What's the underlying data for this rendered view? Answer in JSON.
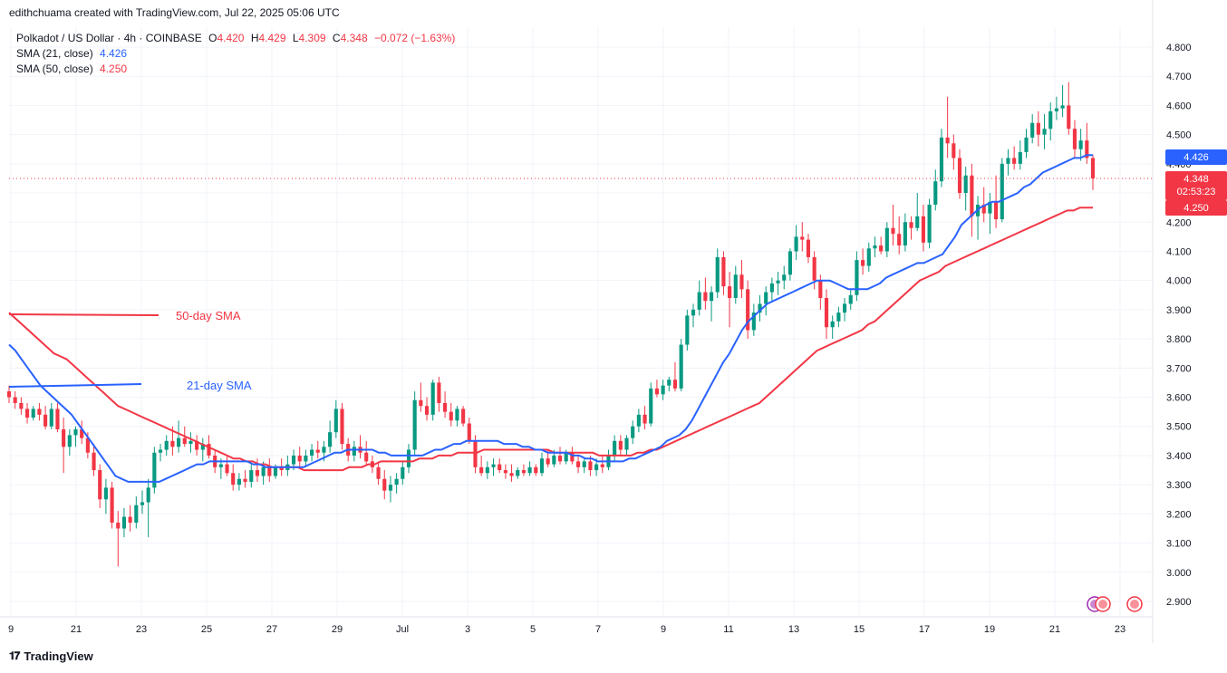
{
  "header": {
    "caption": "edithchuama created with TradingView.com, Jul 22, 2025 05:06 UTC"
  },
  "legend": {
    "symbol": "Polkadot / US Dollar · 4h · COINBASE",
    "open_label": "O",
    "open": "4.420",
    "high_label": "H",
    "high": "4.429",
    "low_label": "L",
    "low": "4.309",
    "close_label": "C",
    "close": "4.348",
    "change": "−0.072 (−1.63%)",
    "sma21_label": "SMA (21, close)",
    "sma21_value": "4.426",
    "sma50_label": "SMA (50, close)",
    "sma50_value": "4.250"
  },
  "annotations": {
    "sma50": "50-day SMA",
    "sma21": "21-day SMA"
  },
  "price_tags": {
    "sma21": "4.426",
    "last": "4.348",
    "countdown": "02:53:23",
    "sma50": "4.250"
  },
  "colors": {
    "up": "#089981",
    "down": "#f23645",
    "sma21": "#2962ff",
    "sma50": "#f23645",
    "grid": "#f0f3fa"
  },
  "brand": "TradingView",
  "chart_data": {
    "type": "candlestick",
    "title": "Polkadot / US Dollar · 4h · COINBASE",
    "ylim": [
      2.85,
      4.85
    ],
    "y_ticks": [
      "4.800",
      "4.700",
      "4.600",
      "4.500",
      "4.400",
      "4.300",
      "4.200",
      "4.100",
      "4.000",
      "3.900",
      "3.800",
      "3.700",
      "3.600",
      "3.500",
      "3.400",
      "3.300",
      "3.200",
      "3.100",
      "3.000",
      "2.900"
    ],
    "x_ticks": [
      "9",
      "21",
      "23",
      "25",
      "27",
      "29",
      "Jul",
      "3",
      "5",
      "7",
      "9",
      "11",
      "13",
      "15",
      "17",
      "19",
      "21",
      "23"
    ],
    "candles": [
      [
        3.62,
        3.64,
        3.58,
        3.6
      ],
      [
        3.6,
        3.62,
        3.56,
        3.58
      ],
      [
        3.58,
        3.6,
        3.54,
        3.56
      ],
      [
        3.56,
        3.58,
        3.51,
        3.53
      ],
      [
        3.53,
        3.57,
        3.52,
        3.56
      ],
      [
        3.56,
        3.58,
        3.52,
        3.54
      ],
      [
        3.54,
        3.57,
        3.49,
        3.5
      ],
      [
        3.5,
        3.58,
        3.49,
        3.56
      ],
      [
        3.56,
        3.58,
        3.48,
        3.49
      ],
      [
        3.49,
        3.53,
        3.34,
        3.43
      ],
      [
        3.43,
        3.49,
        3.4,
        3.47
      ],
      [
        3.47,
        3.5,
        3.43,
        3.49
      ],
      [
        3.49,
        3.52,
        3.44,
        3.46
      ],
      [
        3.46,
        3.48,
        3.39,
        3.41
      ],
      [
        3.41,
        3.44,
        3.33,
        3.35
      ],
      [
        3.35,
        3.37,
        3.22,
        3.25
      ],
      [
        3.25,
        3.32,
        3.2,
        3.29
      ],
      [
        3.29,
        3.31,
        3.15,
        3.17
      ],
      [
        3.17,
        3.21,
        3.02,
        3.15
      ],
      [
        3.15,
        3.22,
        3.12,
        3.19
      ],
      [
        3.19,
        3.23,
        3.14,
        3.17
      ],
      [
        3.17,
        3.26,
        3.15,
        3.23
      ],
      [
        3.23,
        3.28,
        3.2,
        3.24
      ],
      [
        3.24,
        3.32,
        3.12,
        3.29
      ],
      [
        3.29,
        3.43,
        3.27,
        3.41
      ],
      [
        3.41,
        3.44,
        3.38,
        3.42
      ],
      [
        3.42,
        3.47,
        3.4,
        3.45
      ],
      [
        3.45,
        3.5,
        3.4,
        3.43
      ],
      [
        3.43,
        3.52,
        3.41,
        3.46
      ],
      [
        3.46,
        3.5,
        3.43,
        3.44
      ],
      [
        3.44,
        3.48,
        3.41,
        3.45
      ],
      [
        3.45,
        3.47,
        3.4,
        3.42
      ],
      [
        3.42,
        3.46,
        3.38,
        3.44
      ],
      [
        3.44,
        3.47,
        3.39,
        3.4
      ],
      [
        3.4,
        3.42,
        3.34,
        3.36
      ],
      [
        3.36,
        3.39,
        3.32,
        3.37
      ],
      [
        3.37,
        3.4,
        3.33,
        3.34
      ],
      [
        3.34,
        3.37,
        3.28,
        3.3
      ],
      [
        3.3,
        3.34,
        3.28,
        3.32
      ],
      [
        3.32,
        3.35,
        3.29,
        3.31
      ],
      [
        3.31,
        3.37,
        3.29,
        3.35
      ],
      [
        3.35,
        3.39,
        3.31,
        3.33
      ],
      [
        3.33,
        3.38,
        3.3,
        3.36
      ],
      [
        3.36,
        3.39,
        3.31,
        3.33
      ],
      [
        3.33,
        3.37,
        3.32,
        3.36
      ],
      [
        3.36,
        3.39,
        3.33,
        3.35
      ],
      [
        3.35,
        3.4,
        3.33,
        3.37
      ],
      [
        3.37,
        3.42,
        3.35,
        3.4
      ],
      [
        3.4,
        3.43,
        3.36,
        3.38
      ],
      [
        3.38,
        3.42,
        3.36,
        3.4
      ],
      [
        3.4,
        3.44,
        3.38,
        3.42
      ],
      [
        3.42,
        3.45,
        3.39,
        3.41
      ],
      [
        3.41,
        3.45,
        3.38,
        3.43
      ],
      [
        3.43,
        3.52,
        3.41,
        3.48
      ],
      [
        3.48,
        3.59,
        3.46,
        3.56
      ],
      [
        3.56,
        3.58,
        3.42,
        3.44
      ],
      [
        3.44,
        3.46,
        3.38,
        3.4
      ],
      [
        3.4,
        3.45,
        3.38,
        3.43
      ],
      [
        3.43,
        3.47,
        3.39,
        3.41
      ],
      [
        3.41,
        3.45,
        3.37,
        3.38
      ],
      [
        3.38,
        3.4,
        3.34,
        3.36
      ],
      [
        3.36,
        3.38,
        3.3,
        3.32
      ],
      [
        3.32,
        3.35,
        3.25,
        3.28
      ],
      [
        3.28,
        3.33,
        3.24,
        3.3
      ],
      [
        3.3,
        3.34,
        3.27,
        3.32
      ],
      [
        3.32,
        3.38,
        3.3,
        3.36
      ],
      [
        3.36,
        3.44,
        3.34,
        3.42
      ],
      [
        3.42,
        3.62,
        3.4,
        3.59
      ],
      [
        3.59,
        3.65,
        3.55,
        3.57
      ],
      [
        3.57,
        3.6,
        3.52,
        3.54
      ],
      [
        3.54,
        3.66,
        3.52,
        3.65
      ],
      [
        3.65,
        3.67,
        3.55,
        3.58
      ],
      [
        3.58,
        3.62,
        3.53,
        3.55
      ],
      [
        3.55,
        3.58,
        3.5,
        3.52
      ],
      [
        3.52,
        3.57,
        3.5,
        3.56
      ],
      [
        3.56,
        3.57,
        3.5,
        3.51
      ],
      [
        3.51,
        3.53,
        3.44,
        3.45
      ],
      [
        3.45,
        3.47,
        3.34,
        3.36
      ],
      [
        3.36,
        3.4,
        3.33,
        3.34
      ],
      [
        3.34,
        3.38,
        3.32,
        3.36
      ],
      [
        3.36,
        3.39,
        3.33,
        3.37
      ],
      [
        3.37,
        3.39,
        3.34,
        3.35
      ],
      [
        3.35,
        3.37,
        3.32,
        3.34
      ],
      [
        3.34,
        3.37,
        3.31,
        3.33
      ],
      [
        3.33,
        3.36,
        3.32,
        3.35
      ],
      [
        3.35,
        3.37,
        3.33,
        3.34
      ],
      [
        3.34,
        3.38,
        3.33,
        3.36
      ],
      [
        3.36,
        3.37,
        3.33,
        3.34
      ],
      [
        3.34,
        3.41,
        3.33,
        3.39
      ],
      [
        3.39,
        3.42,
        3.36,
        3.37
      ],
      [
        3.37,
        3.42,
        3.36,
        3.4
      ],
      [
        3.4,
        3.43,
        3.37,
        3.38
      ],
      [
        3.38,
        3.42,
        3.37,
        3.41
      ],
      [
        3.41,
        3.43,
        3.37,
        3.38
      ],
      [
        3.38,
        3.4,
        3.34,
        3.36
      ],
      [
        3.36,
        3.39,
        3.34,
        3.38
      ],
      [
        3.38,
        3.4,
        3.33,
        3.35
      ],
      [
        3.35,
        3.39,
        3.33,
        3.37
      ],
      [
        3.37,
        3.4,
        3.34,
        3.36
      ],
      [
        3.36,
        3.42,
        3.35,
        3.4
      ],
      [
        3.4,
        3.47,
        3.38,
        3.45
      ],
      [
        3.45,
        3.47,
        3.4,
        3.42
      ],
      [
        3.42,
        3.47,
        3.4,
        3.46
      ],
      [
        3.46,
        3.52,
        3.44,
        3.5
      ],
      [
        3.5,
        3.56,
        3.48,
        3.54
      ],
      [
        3.54,
        3.57,
        3.49,
        3.51
      ],
      [
        3.51,
        3.65,
        3.5,
        3.63
      ],
      [
        3.63,
        3.66,
        3.6,
        3.61
      ],
      [
        3.61,
        3.66,
        3.59,
        3.64
      ],
      [
        3.64,
        3.67,
        3.62,
        3.66
      ],
      [
        3.66,
        3.72,
        3.62,
        3.63
      ],
      [
        3.63,
        3.8,
        3.62,
        3.78
      ],
      [
        3.78,
        3.9,
        3.76,
        3.88
      ],
      [
        3.88,
        3.92,
        3.84,
        3.9
      ],
      [
        3.9,
        4.0,
        3.88,
        3.96
      ],
      [
        3.96,
        4.01,
        3.9,
        3.93
      ],
      [
        3.93,
        3.98,
        3.86,
        3.96
      ],
      [
        3.96,
        4.11,
        3.94,
        4.08
      ],
      [
        4.08,
        4.1,
        3.95,
        3.98
      ],
      [
        3.98,
        4.03,
        3.84,
        3.94
      ],
      [
        3.94,
        4.05,
        3.92,
        4.02
      ],
      [
        4.02,
        4.07,
        3.94,
        3.97
      ],
      [
        3.97,
        4.0,
        3.8,
        3.83
      ],
      [
        3.83,
        3.92,
        3.81,
        3.89
      ],
      [
        3.89,
        3.95,
        3.86,
        3.92
      ],
      [
        3.92,
        3.98,
        3.88,
        3.96
      ],
      [
        3.96,
        4.01,
        3.93,
        3.99
      ],
      [
        3.99,
        4.03,
        3.95,
        4.0
      ],
      [
        4.0,
        4.05,
        3.97,
        4.02
      ],
      [
        4.02,
        4.11,
        4.0,
        4.1
      ],
      [
        4.1,
        4.19,
        4.07,
        4.15
      ],
      [
        4.15,
        4.2,
        4.1,
        4.14
      ],
      [
        4.14,
        4.16,
        4.06,
        4.08
      ],
      [
        4.08,
        4.1,
        3.97,
        4.0
      ],
      [
        4.0,
        4.02,
        3.9,
        3.94
      ],
      [
        3.94,
        3.97,
        3.8,
        3.84
      ],
      [
        3.84,
        3.88,
        3.8,
        3.86
      ],
      [
        3.86,
        3.91,
        3.84,
        3.89
      ],
      [
        3.89,
        3.94,
        3.86,
        3.92
      ],
      [
        3.92,
        3.97,
        3.9,
        3.95
      ],
      [
        3.95,
        4.1,
        3.93,
        4.07
      ],
      [
        4.07,
        4.11,
        4.02,
        4.05
      ],
      [
        4.05,
        4.13,
        4.03,
        4.11
      ],
      [
        4.11,
        4.15,
        4.08,
        4.12
      ],
      [
        4.12,
        4.15,
        4.09,
        4.1
      ],
      [
        4.1,
        4.2,
        4.08,
        4.18
      ],
      [
        4.18,
        4.26,
        4.12,
        4.16
      ],
      [
        4.16,
        4.22,
        4.09,
        4.12
      ],
      [
        4.12,
        4.23,
        4.1,
        4.2
      ],
      [
        4.2,
        4.22,
        4.14,
        4.18
      ],
      [
        4.18,
        4.3,
        4.17,
        4.22
      ],
      [
        4.22,
        4.26,
        4.1,
        4.13
      ],
      [
        4.13,
        4.28,
        4.11,
        4.26
      ],
      [
        4.26,
        4.38,
        4.24,
        4.34
      ],
      [
        4.34,
        4.52,
        4.32,
        4.49
      ],
      [
        4.49,
        4.63,
        4.42,
        4.47
      ],
      [
        4.47,
        4.5,
        4.38,
        4.42
      ],
      [
        4.42,
        4.45,
        4.28,
        4.3
      ],
      [
        4.3,
        4.39,
        4.24,
        4.36
      ],
      [
        4.36,
        4.4,
        4.15,
        4.22
      ],
      [
        4.22,
        4.29,
        4.14,
        4.26
      ],
      [
        4.26,
        4.32,
        4.2,
        4.23
      ],
      [
        4.23,
        4.3,
        4.16,
        4.27
      ],
      [
        4.27,
        4.36,
        4.18,
        4.21
      ],
      [
        4.21,
        4.42,
        4.2,
        4.4
      ],
      [
        4.4,
        4.45,
        4.36,
        4.42
      ],
      [
        4.42,
        4.46,
        4.38,
        4.4
      ],
      [
        4.4,
        4.48,
        4.38,
        4.44
      ],
      [
        4.44,
        4.52,
        4.42,
        4.49
      ],
      [
        4.49,
        4.57,
        4.47,
        4.54
      ],
      [
        4.54,
        4.58,
        4.46,
        4.5
      ],
      [
        4.5,
        4.57,
        4.45,
        4.52
      ],
      [
        4.52,
        4.61,
        4.48,
        4.58
      ],
      [
        4.58,
        4.63,
        4.55,
        4.59
      ],
      [
        4.59,
        4.67,
        4.56,
        4.6
      ],
      [
        4.6,
        4.68,
        4.5,
        4.52
      ],
      [
        4.52,
        4.55,
        4.42,
        4.45
      ],
      [
        4.45,
        4.52,
        4.41,
        4.48
      ],
      [
        4.48,
        4.54,
        4.4,
        4.42
      ],
      [
        4.42,
        4.43,
        4.31,
        4.35
      ]
    ],
    "sma21": [
      3.78,
      3.76,
      3.73,
      3.7,
      3.67,
      3.64,
      3.62,
      3.6,
      3.58,
      3.56,
      3.54,
      3.51,
      3.48,
      3.45,
      3.42,
      3.39,
      3.36,
      3.33,
      3.32,
      3.31,
      3.31,
      3.31,
      3.31,
      3.31,
      3.31,
      3.32,
      3.33,
      3.34,
      3.35,
      3.36,
      3.37,
      3.37,
      3.38,
      3.38,
      3.38,
      3.38,
      3.38,
      3.38,
      3.38,
      3.37,
      3.37,
      3.36,
      3.36,
      3.36,
      3.36,
      3.36,
      3.36,
      3.36,
      3.37,
      3.38,
      3.39,
      3.4,
      3.41,
      3.41,
      3.42,
      3.42,
      3.42,
      3.42,
      3.42,
      3.41,
      3.41,
      3.4,
      3.4,
      3.4,
      3.4,
      3.4,
      3.4,
      3.41,
      3.42,
      3.42,
      3.43,
      3.44,
      3.44,
      3.45,
      3.45,
      3.45,
      3.45,
      3.45,
      3.45,
      3.44,
      3.44,
      3.44,
      3.43,
      3.43,
      3.42,
      3.42,
      3.41,
      3.41,
      3.41,
      3.41,
      3.4,
      3.4,
      3.39,
      3.39,
      3.38,
      3.38,
      3.38,
      3.38,
      3.38,
      3.39,
      3.39,
      3.4,
      3.41,
      3.42,
      3.43,
      3.45,
      3.46,
      3.47,
      3.49,
      3.52,
      3.56,
      3.6,
      3.64,
      3.68,
      3.72,
      3.75,
      3.79,
      3.83,
      3.86,
      3.88,
      3.9,
      3.92,
      3.93,
      3.94,
      3.95,
      3.96,
      3.97,
      3.98,
      3.99,
      4.0,
      4.0,
      4.0,
      3.99,
      3.98,
      3.97,
      3.97,
      3.97,
      3.97,
      3.98,
      3.99,
      4.01,
      4.02,
      4.03,
      4.04,
      4.05,
      4.06,
      4.06,
      4.07,
      4.08,
      4.09,
      4.12,
      4.15,
      4.19,
      4.21,
      4.23,
      4.25,
      4.26,
      4.27,
      4.27,
      4.28,
      4.29,
      4.3,
      4.32,
      4.33,
      4.35,
      4.37,
      4.38,
      4.39,
      4.4,
      4.41,
      4.42,
      4.42,
      4.43,
      4.43
    ],
    "sma50": [
      3.89,
      3.87,
      3.85,
      3.83,
      3.81,
      3.79,
      3.77,
      3.75,
      3.74,
      3.73,
      3.71,
      3.69,
      3.67,
      3.65,
      3.63,
      3.61,
      3.59,
      3.57,
      3.56,
      3.55,
      3.54,
      3.53,
      3.52,
      3.51,
      3.5,
      3.49,
      3.48,
      3.47,
      3.46,
      3.45,
      3.44,
      3.43,
      3.42,
      3.41,
      3.4,
      3.39,
      3.39,
      3.38,
      3.38,
      3.37,
      3.37,
      3.36,
      3.36,
      3.36,
      3.36,
      3.36,
      3.35,
      3.35,
      3.35,
      3.35,
      3.35,
      3.35,
      3.35,
      3.36,
      3.36,
      3.36,
      3.37,
      3.37,
      3.38,
      3.38,
      3.38,
      3.38,
      3.38,
      3.38,
      3.39,
      3.39,
      3.39,
      3.4,
      3.4,
      3.4,
      3.41,
      3.41,
      3.41,
      3.41,
      3.42,
      3.42,
      3.42,
      3.42,
      3.42,
      3.42,
      3.42,
      3.42,
      3.42,
      3.42,
      3.42,
      3.41,
      3.41,
      3.41,
      3.41,
      3.41,
      3.41,
      3.41,
      3.4,
      3.4,
      3.4,
      3.4,
      3.4,
      3.4,
      3.41,
      3.41,
      3.42,
      3.42,
      3.43,
      3.44,
      3.45,
      3.46,
      3.47,
      3.48,
      3.49,
      3.5,
      3.51,
      3.52,
      3.53,
      3.54,
      3.55,
      3.56,
      3.57,
      3.58,
      3.6,
      3.62,
      3.64,
      3.66,
      3.68,
      3.7,
      3.72,
      3.74,
      3.76,
      3.77,
      3.78,
      3.79,
      3.8,
      3.81,
      3.82,
      3.83,
      3.85,
      3.86,
      3.88,
      3.9,
      3.92,
      3.94,
      3.96,
      3.98,
      4.0,
      4.01,
      4.02,
      4.03,
      4.05,
      4.06,
      4.07,
      4.08,
      4.09,
      4.1,
      4.11,
      4.12,
      4.13,
      4.14,
      4.15,
      4.16,
      4.17,
      4.18,
      4.19,
      4.2,
      4.21,
      4.22,
      4.23,
      4.24,
      4.24,
      4.25,
      4.25,
      4.25
    ]
  }
}
